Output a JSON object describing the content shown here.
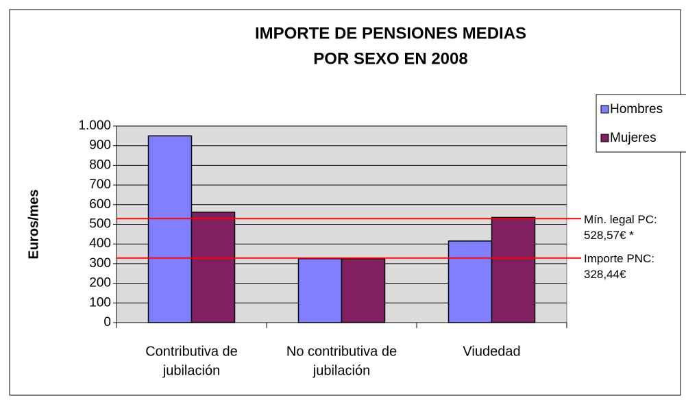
{
  "chart_data": {
    "type": "bar",
    "title": [
      "IMPORTE DE PENSIONES MEDIAS",
      "POR SEXO EN 2008"
    ],
    "y_label": "Euros/mes",
    "categories": [
      [
        "Contributiva de",
        "jubilación"
      ],
      [
        "No contributiva de",
        "jubilación"
      ],
      [
        "Viudedad"
      ]
    ],
    "series": [
      {
        "name": "Hombres",
        "color": "#8080ff",
        "values": [
          950,
          325,
          415
        ]
      },
      {
        "name": "Mujeres",
        "color": "#802060",
        "values": [
          562,
          325,
          535
        ]
      }
    ],
    "ylim": [
      0,
      1000
    ],
    "yticks": [
      0,
      100,
      200,
      300,
      400,
      500,
      600,
      700,
      800,
      900,
      {
        "value": 1000,
        "label": "1.000"
      }
    ],
    "grid": true,
    "legend": "top-right",
    "reference_lines": [
      {
        "value": 528.57,
        "color": "#ff0000",
        "label": [
          "Mín. legal PC:",
          "528,57€ *"
        ]
      },
      {
        "value": 328.44,
        "color": "#ff0000",
        "label": [
          "Importe PNC:",
          "328,44€"
        ]
      }
    ]
  }
}
